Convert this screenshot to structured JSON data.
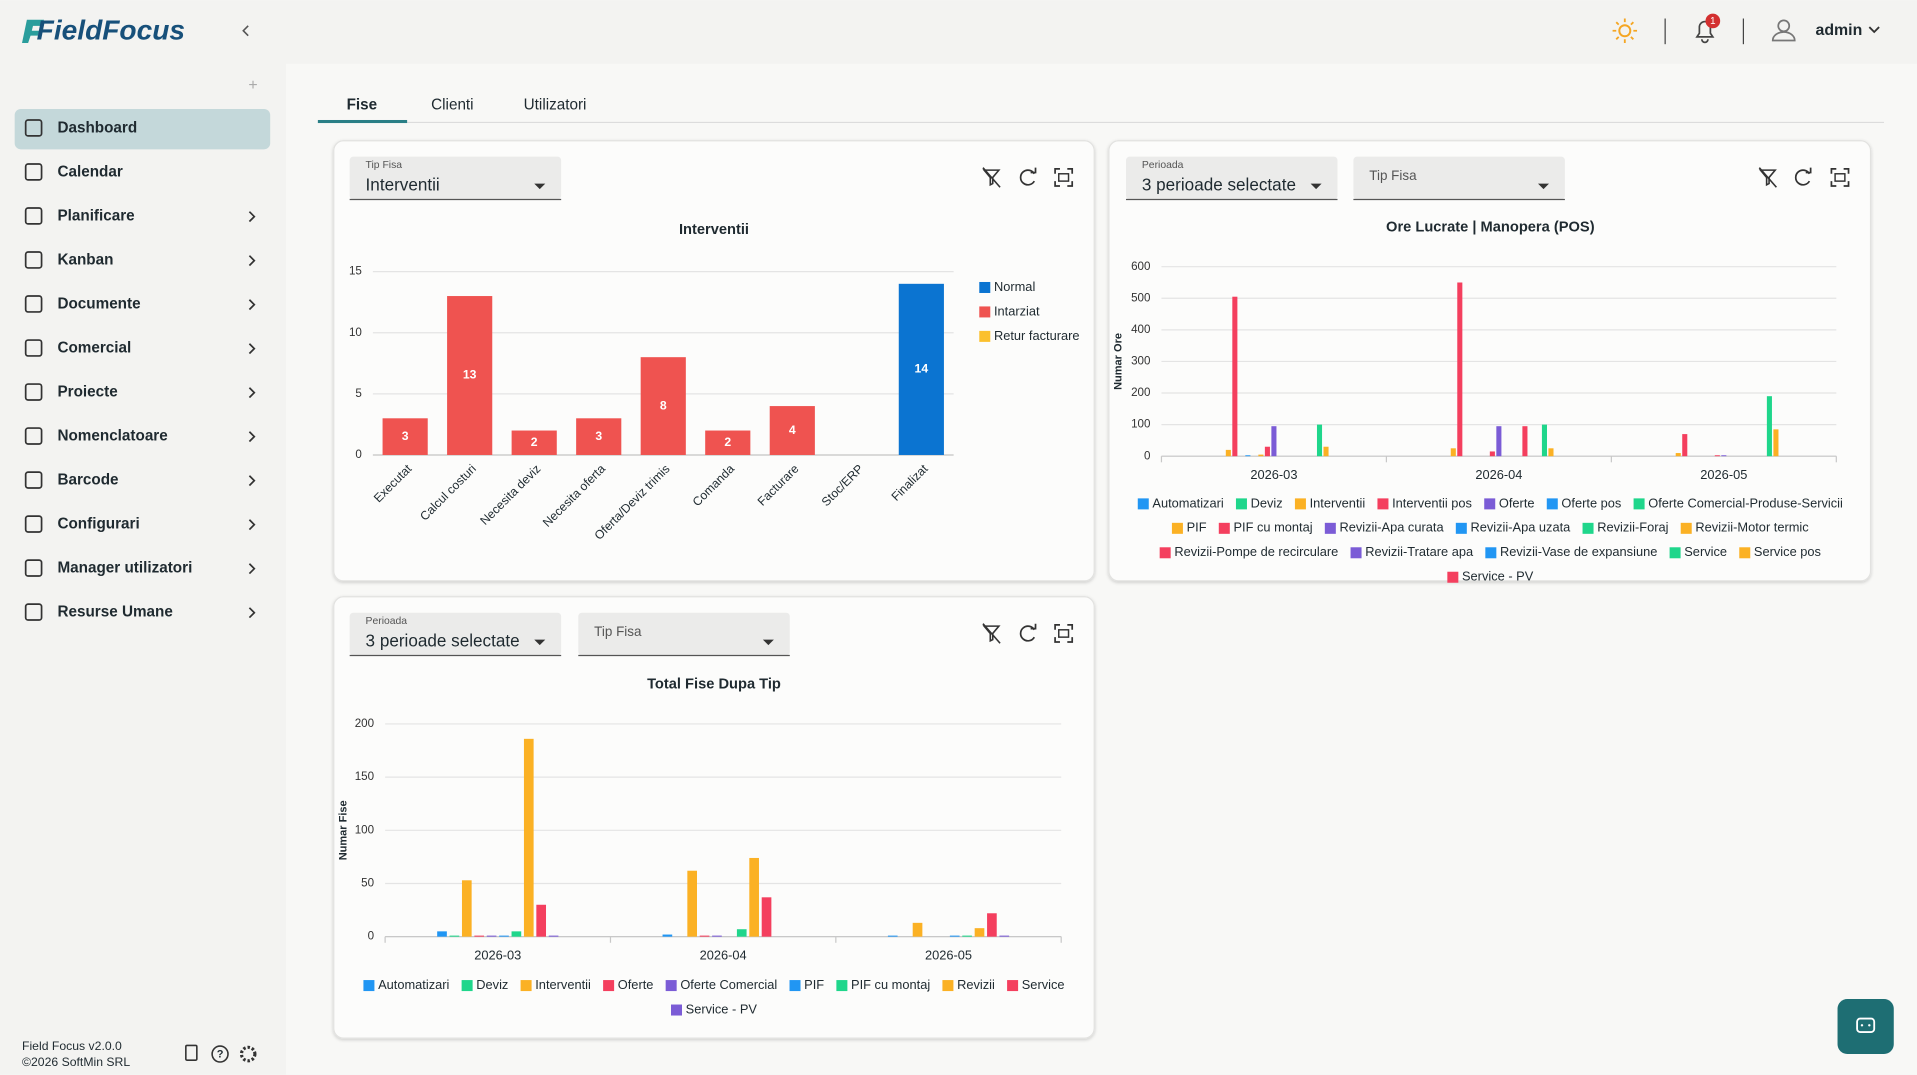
{
  "header": {
    "logo": "FieldFocus",
    "notifications": 1,
    "user": "admin"
  },
  "sidebar": {
    "items": [
      "Dashboard",
      "Calendar",
      "Planificare",
      "Kanban",
      "Documente",
      "Comercial",
      "Proiecte",
      "Nomenclatoare",
      "Barcode",
      "Configurari",
      "Manager utilizatori",
      "Resurse Umane"
    ],
    "version": "Field Focus v2.0.0",
    "copyright": "©2026 SoftMin SRL"
  },
  "tabs": [
    "Fise",
    "Clienti",
    "Utilizatori"
  ],
  "panels": [
    {
      "filters": [
        {
          "label": "Tip Fisa",
          "value": "Interventii"
        }
      ]
    },
    {
      "filters": [
        {
          "label": "Perioada",
          "value": "3 perioade selectate"
        },
        {
          "label": "Tip Fisa"
        }
      ]
    },
    {
      "filters": [
        {
          "label": "Perioada",
          "value": "3 perioade selectate"
        },
        {
          "label": "Tip Fisa"
        }
      ]
    }
  ],
  "chart_data": [
    {
      "type": "bar",
      "stacked": true,
      "title": "Interventii",
      "legend": "right",
      "grid": true,
      "categories": [
        "Executat",
        "Calcul costuri",
        "Necesita deviz",
        "Necesita oferta",
        "Oferta/Deviz trimis",
        "Comanda",
        "Facturare",
        "Stoc/ERP",
        "Finalizat"
      ],
      "series": [
        {
          "name": "Normal",
          "color": "#0b74d1",
          "values": [
            0,
            0,
            0,
            0,
            0,
            0,
            0,
            0,
            14
          ]
        },
        {
          "name": "Intarziat",
          "color": "#ef5350",
          "values": [
            3,
            13,
            2,
            3,
            8,
            2,
            4,
            0,
            0
          ]
        },
        {
          "name": "Retur facturare",
          "color": "#fbc02d",
          "values": [
            0,
            0,
            0,
            0,
            0,
            0,
            0,
            0,
            0
          ]
        }
      ],
      "ylim": [
        0,
        15
      ],
      "yticks": [
        0,
        5,
        10,
        15
      ]
    },
    {
      "type": "bar",
      "stacked": false,
      "title": "Ore Lucrate | Manopera (POS)",
      "y_label": "Numar Ore",
      "legend": "bottom",
      "grid": true,
      "categories": [
        "2026-03",
        "2026-04",
        "2026-05"
      ],
      "series": [
        {
          "name": "Automatizari",
          "color": "#2196f3",
          "values": [
            0,
            0,
            0
          ]
        },
        {
          "name": "Deviz",
          "color": "#1fd68b",
          "values": [
            0,
            0,
            0
          ]
        },
        {
          "name": "Interventii",
          "color": "#fbb124",
          "values": [
            20,
            25,
            10
          ]
        },
        {
          "name": "Interventii pos",
          "color": "#f43f5e",
          "values": [
            505,
            550,
            70
          ]
        },
        {
          "name": "Oferte",
          "color": "#7b5cd6",
          "values": [
            0,
            0,
            0
          ]
        },
        {
          "name": "Oferte pos",
          "color": "#2196f3",
          "values": [
            3,
            0,
            0
          ]
        },
        {
          "name": "Oferte Comercial-Produse-Servicii",
          "color": "#1fd68b",
          "values": [
            0,
            0,
            0
          ]
        },
        {
          "name": "PIF",
          "color": "#fbb124",
          "values": [
            5,
            0,
            0
          ]
        },
        {
          "name": "PIF cu montaj",
          "color": "#f43f5e",
          "values": [
            30,
            15,
            3
          ]
        },
        {
          "name": "Revizii-Apa curata",
          "color": "#7b5cd6",
          "values": [
            95,
            95,
            3
          ]
        },
        {
          "name": "Revizii-Apa uzata",
          "color": "#2196f3",
          "values": [
            0,
            0,
            0
          ]
        },
        {
          "name": "Revizii-Foraj",
          "color": "#1fd68b",
          "values": [
            0,
            0,
            0
          ]
        },
        {
          "name": "Revizii-Motor termic",
          "color": "#fbb124",
          "values": [
            0,
            0,
            0
          ]
        },
        {
          "name": "Revizii-Pompe de recirculare",
          "color": "#f43f5e",
          "values": [
            0,
            95,
            0
          ]
        },
        {
          "name": "Revizii-Tratare apa",
          "color": "#7b5cd6",
          "values": [
            0,
            0,
            0
          ]
        },
        {
          "name": "Revizii-Vase de expansiune",
          "color": "#2196f3",
          "values": [
            0,
            0,
            0
          ]
        },
        {
          "name": "Service",
          "color": "#1fd68b",
          "values": [
            100,
            100,
            190
          ]
        },
        {
          "name": "Service pos",
          "color": "#fbb124",
          "values": [
            30,
            25,
            85
          ]
        },
        {
          "name": "Service - PV",
          "color": "#f43f5e",
          "values": [
            0,
            0,
            0
          ]
        }
      ],
      "ylim": [
        0,
        600
      ],
      "yticks": [
        0,
        100,
        200,
        300,
        400,
        500,
        600
      ]
    },
    {
      "type": "bar",
      "stacked": false,
      "title": "Total Fise Dupa Tip",
      "y_label": "Numar Fise",
      "legend": "bottom",
      "grid": true,
      "categories": [
        "2026-03",
        "2026-04",
        "2026-05"
      ],
      "series": [
        {
          "name": "Automatizari",
          "color": "#2196f3",
          "values": [
            5,
            2,
            1
          ]
        },
        {
          "name": "Deviz",
          "color": "#1fd68b",
          "values": [
            1,
            0,
            0
          ]
        },
        {
          "name": "Interventii",
          "color": "#fbb124",
          "values": [
            53,
            62,
            13
          ]
        },
        {
          "name": "Oferte",
          "color": "#f43f5e",
          "values": [
            1,
            1,
            0
          ]
        },
        {
          "name": "Oferte Comercial",
          "color": "#7b5cd6",
          "values": [
            1,
            1,
            0
          ]
        },
        {
          "name": "PIF",
          "color": "#2196f3",
          "values": [
            1,
            0,
            1
          ]
        },
        {
          "name": "PIF cu montaj",
          "color": "#1fd68b",
          "values": [
            5,
            7,
            1
          ]
        },
        {
          "name": "Revizii",
          "color": "#fbb124",
          "values": [
            186,
            74,
            8
          ]
        },
        {
          "name": "Service",
          "color": "#f43f5e",
          "values": [
            30,
            37,
            22
          ]
        },
        {
          "name": "Service - PV",
          "color": "#7b5cd6",
          "values": [
            1,
            0,
            1
          ]
        }
      ],
      "ylim": [
        0,
        200
      ],
      "yticks": [
        0,
        50,
        100,
        150,
        200
      ]
    }
  ]
}
